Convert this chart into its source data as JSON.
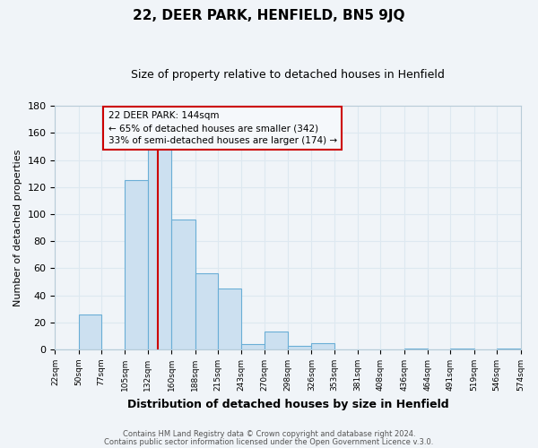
{
  "title": "22, DEER PARK, HENFIELD, BN5 9JQ",
  "subtitle": "Size of property relative to detached houses in Henfield",
  "xlabel": "Distribution of detached houses by size in Henfield",
  "ylabel": "Number of detached properties",
  "bar_left_edges": [
    22,
    50,
    77,
    105,
    132,
    160,
    188,
    215,
    243,
    270,
    298,
    326,
    353,
    381,
    408,
    436,
    464,
    491,
    519,
    546
  ],
  "bar_widths": [
    28,
    27,
    28,
    27,
    28,
    28,
    27,
    28,
    27,
    28,
    28,
    27,
    28,
    27,
    28,
    28,
    27,
    28,
    27,
    28
  ],
  "bar_heights": [
    0,
    26,
    0,
    125,
    148,
    96,
    56,
    45,
    4,
    13,
    3,
    5,
    0,
    0,
    0,
    1,
    0,
    1,
    0,
    1
  ],
  "bar_facecolor": "#cce0f0",
  "bar_edgecolor": "#6aaed6",
  "tick_labels": [
    "22sqm",
    "50sqm",
    "77sqm",
    "105sqm",
    "132sqm",
    "160sqm",
    "188sqm",
    "215sqm",
    "243sqm",
    "270sqm",
    "298sqm",
    "326sqm",
    "353sqm",
    "381sqm",
    "408sqm",
    "436sqm",
    "464sqm",
    "491sqm",
    "519sqm",
    "546sqm",
    "574sqm"
  ],
  "ylim": [
    0,
    180
  ],
  "yticks": [
    0,
    20,
    40,
    60,
    80,
    100,
    120,
    140,
    160,
    180
  ],
  "xlim_left": 22,
  "xlim_right": 574,
  "vline_x": 144,
  "vline_color": "#cc0000",
  "annotation_title": "22 DEER PARK: 144sqm",
  "annotation_line1": "← 65% of detached houses are smaller (342)",
  "annotation_line2": "33% of semi-detached houses are larger (174) →",
  "annotation_box_color": "#cc0000",
  "annotation_bg": "#f5f8fb",
  "grid_color": "#dde8f0",
  "background_color": "#f0f4f8",
  "footer1": "Contains HM Land Registry data © Crown copyright and database right 2024.",
  "footer2": "Contains public sector information licensed under the Open Government Licence v.3.0.",
  "title_fontsize": 11,
  "subtitle_fontsize": 9,
  "ylabel_fontsize": 8,
  "xlabel_fontsize": 9
}
